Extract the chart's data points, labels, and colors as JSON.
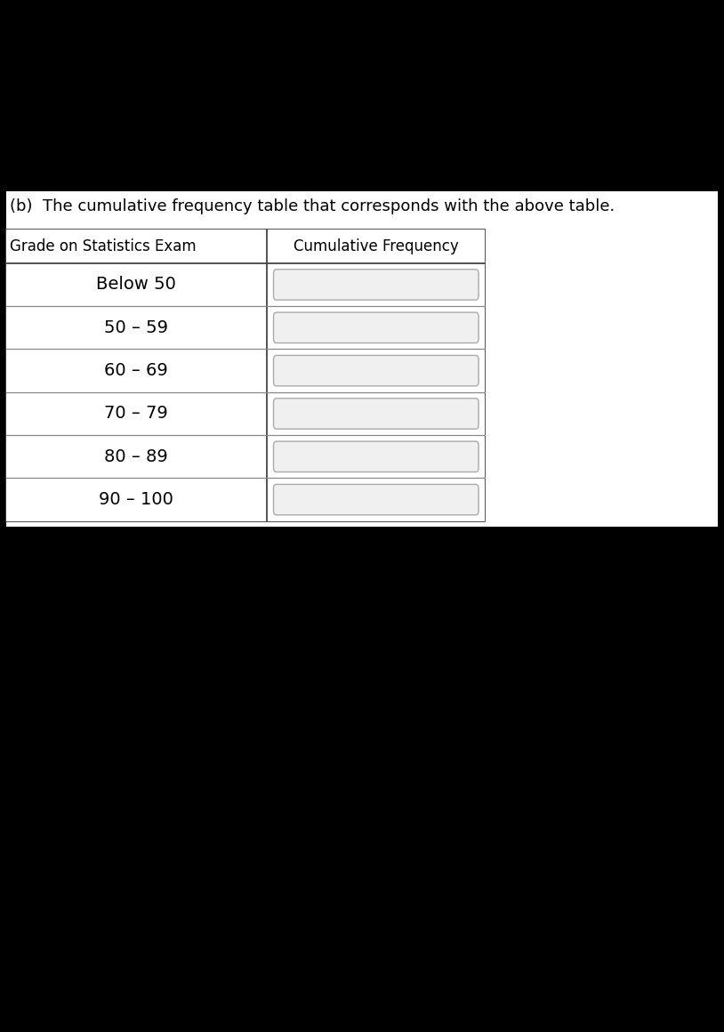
{
  "title_text": "(b)  The cumulative frequency table that corresponds with the above table.",
  "col1_header": "Grade on Statistics Exam",
  "col2_header": "Cumulative Frequency",
  "rows": [
    "Below 50",
    "50 – 59",
    "60 – 69",
    "70 – 79",
    "80 – 89",
    "90 – 100"
  ],
  "background_color": "#000000",
  "text_color": "#000000",
  "title_fontsize": 13,
  "header_fontsize": 12,
  "row_fontsize": 14,
  "fig_width": 8.14,
  "fig_height": 11.6
}
